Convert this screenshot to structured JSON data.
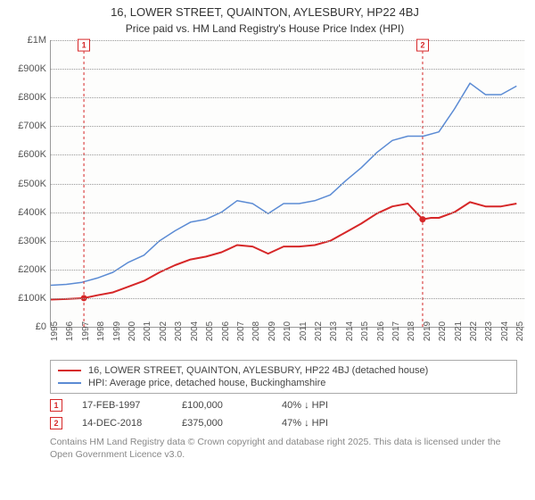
{
  "title": "16, LOWER STREET, QUAINTON, AYLESBURY, HP22 4BJ",
  "subtitle": "Price paid vs. HM Land Registry's House Price Index (HPI)",
  "chart": {
    "type": "line",
    "background_color": "#fdfdfc",
    "grid_color": "#999999",
    "axis_color": "#999999",
    "label_fontsize": 11,
    "label_color": "#555555",
    "x": {
      "min": 1995,
      "max": 2025.5,
      "labels": [
        1995,
        1996,
        1997,
        1998,
        1999,
        2000,
        2001,
        2002,
        2003,
        2004,
        2005,
        2006,
        2007,
        2008,
        2009,
        2010,
        2011,
        2012,
        2013,
        2014,
        2015,
        2016,
        2017,
        2018,
        2019,
        2020,
        2021,
        2022,
        2023,
        2024,
        2025
      ]
    },
    "y": {
      "min": 0,
      "max": 1000000,
      "step": 100000,
      "format": "GBP_K",
      "labels": [
        "£0",
        "£100K",
        "£200K",
        "£300K",
        "£400K",
        "£500K",
        "£600K",
        "£700K",
        "£800K",
        "£900K",
        "£1M"
      ]
    },
    "series": [
      {
        "name": "price_paid",
        "label": "16, LOWER STREET, QUAINTON, AYLESBURY, HP22 4BJ (detached house)",
        "color": "#d62728",
        "line_width": 2,
        "data": [
          [
            1995,
            95000
          ],
          [
            1996,
            97000
          ],
          [
            1997.13,
            100000
          ],
          [
            1998,
            110000
          ],
          [
            1999,
            120000
          ],
          [
            2000,
            140000
          ],
          [
            2001,
            160000
          ],
          [
            2002,
            190000
          ],
          [
            2003,
            215000
          ],
          [
            2004,
            235000
          ],
          [
            2005,
            245000
          ],
          [
            2006,
            260000
          ],
          [
            2007,
            285000
          ],
          [
            2008,
            280000
          ],
          [
            2009,
            255000
          ],
          [
            2010,
            280000
          ],
          [
            2011,
            280000
          ],
          [
            2012,
            285000
          ],
          [
            2013,
            300000
          ],
          [
            2014,
            330000
          ],
          [
            2015,
            360000
          ],
          [
            2016,
            395000
          ],
          [
            2017,
            420000
          ],
          [
            2018,
            430000
          ],
          [
            2018.95,
            375000
          ],
          [
            2019.5,
            380000
          ],
          [
            2020,
            380000
          ],
          [
            2021,
            400000
          ],
          [
            2022,
            435000
          ],
          [
            2023,
            420000
          ],
          [
            2024,
            420000
          ],
          [
            2025,
            430000
          ]
        ]
      },
      {
        "name": "hpi",
        "label": "HPI: Average price, detached house, Buckinghamshire",
        "color": "#5b8bd4",
        "line_width": 1.5,
        "data": [
          [
            1995,
            145000
          ],
          [
            1996,
            148000
          ],
          [
            1997,
            155000
          ],
          [
            1998,
            170000
          ],
          [
            1999,
            190000
          ],
          [
            2000,
            225000
          ],
          [
            2001,
            250000
          ],
          [
            2002,
            300000
          ],
          [
            2003,
            335000
          ],
          [
            2004,
            365000
          ],
          [
            2005,
            375000
          ],
          [
            2006,
            400000
          ],
          [
            2007,
            440000
          ],
          [
            2008,
            430000
          ],
          [
            2009,
            395000
          ],
          [
            2010,
            430000
          ],
          [
            2011,
            430000
          ],
          [
            2012,
            440000
          ],
          [
            2013,
            460000
          ],
          [
            2014,
            510000
          ],
          [
            2015,
            555000
          ],
          [
            2016,
            608000
          ],
          [
            2017,
            650000
          ],
          [
            2018,
            665000
          ],
          [
            2019,
            665000
          ],
          [
            2020,
            680000
          ],
          [
            2021,
            760000
          ],
          [
            2022,
            850000
          ],
          [
            2023,
            810000
          ],
          [
            2024,
            810000
          ],
          [
            2025,
            840000
          ]
        ]
      }
    ],
    "markers": [
      {
        "n": "1",
        "x": 1997.13,
        "y": 100000
      },
      {
        "n": "2",
        "x": 2018.95,
        "y": 375000
      }
    ]
  },
  "legend": {
    "series1_label": "16, LOWER STREET, QUAINTON, AYLESBURY, HP22 4BJ (detached house)",
    "series2_label": "HPI: Average price, detached house, Buckinghamshire"
  },
  "transactions": [
    {
      "n": "1",
      "date": "17-FEB-1997",
      "price": "£100,000",
      "delta": "40% ↓ HPI"
    },
    {
      "n": "2",
      "date": "14-DEC-2018",
      "price": "£375,000",
      "delta": "47% ↓ HPI"
    }
  ],
  "footnote": "Contains HM Land Registry data © Crown copyright and database right 2025. This data is licensed under the Open Government Licence v3.0.",
  "colors": {
    "red": "#d62728",
    "blue": "#5b8bd4"
  }
}
